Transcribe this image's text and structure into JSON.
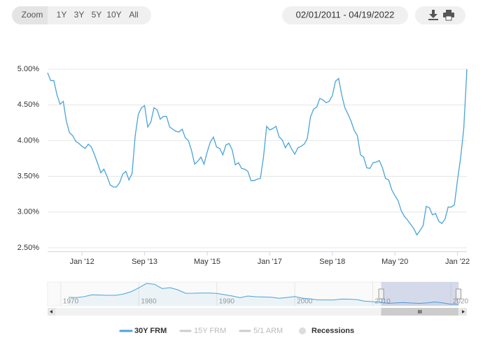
{
  "toolbar": {
    "zoom_label": "Zoom",
    "zoom_buttons": [
      "1Y",
      "3Y",
      "5Y",
      "10Y",
      "All"
    ],
    "date_range": "02/01/2011 - 04/19/2022"
  },
  "chart_data": [
    {
      "type": "line",
      "x": [
        "2011-02",
        "2011-03",
        "2011-04",
        "2011-05",
        "2011-06",
        "2011-07",
        "2011-08",
        "2011-09",
        "2011-10",
        "2011-11",
        "2011-12",
        "2012-01",
        "2012-02",
        "2012-03",
        "2012-04",
        "2012-05",
        "2012-06",
        "2012-07",
        "2012-08",
        "2012-09",
        "2012-10",
        "2012-11",
        "2012-12",
        "2013-01",
        "2013-02",
        "2013-03",
        "2013-04",
        "2013-05",
        "2013-06",
        "2013-07",
        "2013-08",
        "2013-09",
        "2013-10",
        "2013-11",
        "2013-12",
        "2014-01",
        "2014-02",
        "2014-03",
        "2014-04",
        "2014-05",
        "2014-06",
        "2014-07",
        "2014-08",
        "2014-09",
        "2014-10",
        "2014-11",
        "2014-12",
        "2015-01",
        "2015-02",
        "2015-03",
        "2015-04",
        "2015-05",
        "2015-06",
        "2015-07",
        "2015-08",
        "2015-09",
        "2015-10",
        "2015-11",
        "2015-12",
        "2016-01",
        "2016-02",
        "2016-03",
        "2016-04",
        "2016-05",
        "2016-06",
        "2016-07",
        "2016-08",
        "2016-09",
        "2016-10",
        "2016-11",
        "2016-12",
        "2017-01",
        "2017-02",
        "2017-03",
        "2017-04",
        "2017-05",
        "2017-06",
        "2017-07",
        "2017-08",
        "2017-09",
        "2017-10",
        "2017-11",
        "2017-12",
        "2018-01",
        "2018-02",
        "2018-03",
        "2018-04",
        "2018-05",
        "2018-06",
        "2018-07",
        "2018-08",
        "2018-09",
        "2018-10",
        "2018-11",
        "2018-12",
        "2019-01",
        "2019-02",
        "2019-03",
        "2019-04",
        "2019-05",
        "2019-06",
        "2019-07",
        "2019-08",
        "2019-09",
        "2019-10",
        "2019-11",
        "2019-12",
        "2020-01",
        "2020-02",
        "2020-03",
        "2020-04",
        "2020-05",
        "2020-06",
        "2020-07",
        "2020-08",
        "2020-09",
        "2020-10",
        "2020-11",
        "2020-12",
        "2021-01",
        "2021-02",
        "2021-03",
        "2021-04",
        "2021-05",
        "2021-06",
        "2021-07",
        "2021-08",
        "2021-09",
        "2021-10",
        "2021-11",
        "2021-12",
        "2022-01",
        "2022-02",
        "2022-03",
        "2022-04"
      ],
      "series": [
        {
          "name": "30Y FRM",
          "color": "#4aa3d9",
          "values": [
            4.95,
            4.84,
            4.84,
            4.64,
            4.51,
            4.55,
            4.27,
            4.11,
            4.07,
            3.99,
            3.96,
            3.92,
            3.89,
            3.95,
            3.91,
            3.8,
            3.68,
            3.55,
            3.6,
            3.5,
            3.38,
            3.35,
            3.35,
            3.41,
            3.53,
            3.57,
            3.45,
            3.54,
            4.07,
            4.37,
            4.46,
            4.49,
            4.19,
            4.26,
            4.46,
            4.43,
            4.3,
            4.34,
            4.34,
            4.19,
            4.16,
            4.13,
            4.12,
            4.16,
            4.04,
            4.0,
            3.86,
            3.67,
            3.71,
            3.77,
            3.67,
            3.84,
            3.98,
            4.05,
            3.91,
            3.89,
            3.8,
            3.94,
            3.96,
            3.87,
            3.66,
            3.69,
            3.61,
            3.6,
            3.57,
            3.44,
            3.44,
            3.46,
            3.47,
            3.77,
            4.2,
            4.15,
            4.17,
            4.2,
            4.05,
            4.01,
            3.9,
            3.97,
            3.88,
            3.81,
            3.9,
            3.92,
            3.95,
            4.03,
            4.33,
            4.44,
            4.47,
            4.59,
            4.57,
            4.53,
            4.55,
            4.63,
            4.83,
            4.87,
            4.64,
            4.46,
            4.37,
            4.27,
            4.14,
            4.07,
            3.8,
            3.77,
            3.62,
            3.61,
            3.69,
            3.7,
            3.72,
            3.62,
            3.47,
            3.45,
            3.31,
            3.23,
            3.16,
            3.02,
            2.94,
            2.89,
            2.83,
            2.77,
            2.68,
            2.74,
            2.81,
            3.08,
            3.06,
            2.96,
            2.98,
            2.87,
            2.84,
            2.9,
            3.07,
            3.07,
            3.1,
            3.45,
            3.76,
            4.17,
            5.0
          ]
        }
      ],
      "legend_inactive": [
        "15Y FRM",
        "5/1 ARM",
        "Recessions"
      ],
      "xlim": [
        "2011-02",
        "2022-04"
      ],
      "xticks": [
        {
          "value": "2012-01",
          "label": "Jan '12"
        },
        {
          "value": "2013-09",
          "label": "Sep '13"
        },
        {
          "value": "2015-05",
          "label": "May '15"
        },
        {
          "value": "2017-01",
          "label": "Jan '17"
        },
        {
          "value": "2018-09",
          "label": "Sep '18"
        },
        {
          "value": "2020-05",
          "label": "May '20"
        },
        {
          "value": "2022-01",
          "label": "Jan '22"
        }
      ],
      "ylim": [
        2.45,
        5.46
      ],
      "yticks": [
        {
          "value": 2.5,
          "label": "2.50%"
        },
        {
          "value": 3.0,
          "label": "3.00%"
        },
        {
          "value": 3.5,
          "label": "3.50%"
        },
        {
          "value": 4.0,
          "label": "4.00%"
        },
        {
          "value": 4.5,
          "label": "4.50%"
        },
        {
          "value": 5.0,
          "label": "5.00%"
        }
      ],
      "grid": true
    },
    {
      "type": "area",
      "x": [
        1971,
        1972,
        1973,
        1974,
        1975,
        1976,
        1977,
        1978,
        1979,
        1980,
        1981,
        1982,
        1983,
        1984,
        1985,
        1986,
        1987,
        1988,
        1989,
        1990,
        1991,
        1992,
        1993,
        1994,
        1995,
        1996,
        1997,
        1998,
        1999,
        2000,
        2001,
        2002,
        2003,
        2004,
        2005,
        2006,
        2007,
        2008,
        2009,
        2010,
        2011,
        2012,
        2013,
        2014,
        2015,
        2016,
        2017,
        2018,
        2019,
        2020,
        2021
      ],
      "values": [
        7.54,
        7.38,
        8.04,
        9.19,
        9.05,
        8.87,
        8.85,
        9.64,
        11.2,
        13.74,
        16.63,
        16.04,
        13.24,
        13.88,
        12.43,
        10.19,
        10.21,
        10.34,
        10.32,
        10.13,
        9.25,
        8.39,
        7.31,
        8.38,
        7.93,
        7.81,
        7.6,
        6.94,
        7.44,
        8.05,
        6.97,
        6.54,
        5.83,
        5.84,
        5.87,
        6.41,
        6.34,
        6.03,
        5.04,
        4.69,
        4.45,
        3.66,
        3.98,
        4.17,
        3.85,
        3.65,
        3.99,
        4.54,
        3.94,
        3.11,
        2.96
      ],
      "color": "#4aa3d9",
      "xlim": [
        1968.3,
        2021.0
      ],
      "xticks": [
        1970,
        1980,
        1990,
        2000,
        2010,
        2020
      ],
      "ylim": [
        2.5,
        17.5
      ]
    }
  ]
}
